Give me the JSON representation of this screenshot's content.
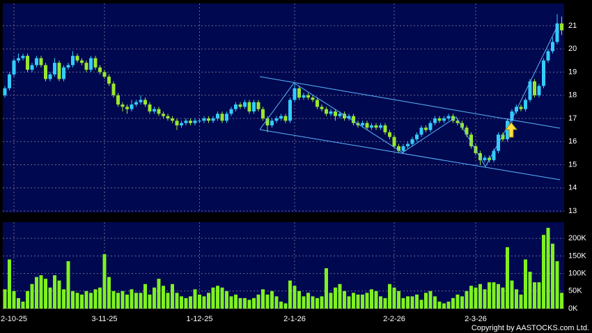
{
  "chart_data": {
    "type": "candlestick",
    "categories": [
      null,
      null,
      "2-10-25",
      null,
      null,
      null,
      null,
      null,
      null,
      null,
      null,
      null,
      null,
      null,
      null,
      null,
      null,
      null,
      null,
      null,
      null,
      null,
      "3-11-25",
      null,
      null,
      null,
      null,
      null,
      null,
      null,
      null,
      null,
      null,
      null,
      null,
      null,
      null,
      null,
      null,
      null,
      null,
      null,
      null,
      "1-12-25",
      null,
      null,
      null,
      null,
      null,
      null,
      null,
      null,
      null,
      null,
      null,
      null,
      null,
      null,
      null,
      null,
      null,
      null,
      null,
      null,
      "2-1-26",
      null,
      null,
      null,
      null,
      null,
      null,
      null,
      null,
      null,
      null,
      null,
      null,
      null,
      null,
      null,
      null,
      null,
      null,
      null,
      null,
      null,
      "2-2-26",
      null,
      null,
      null,
      null,
      null,
      null,
      null,
      null,
      null,
      null,
      null,
      null,
      null,
      null,
      null,
      null,
      null,
      "2-3-26",
      null,
      null,
      null,
      null,
      null,
      null,
      null,
      null,
      null,
      null,
      null,
      null,
      null,
      null,
      null,
      null,
      null,
      null,
      null
    ],
    "open": [
      18.0,
      18.3,
      18.9,
      19.5,
      19.6,
      19.7,
      19.1,
      19.3,
      19.6,
      19.3,
      18.7,
      18.9,
      19.4,
      18.7,
      19.2,
      19.3,
      19.7,
      19.5,
      19.4,
      19.1,
      19.6,
      19.2,
      19.0,
      18.8,
      18.5,
      18.0,
      17.6,
      17.5,
      17.4,
      17.6,
      17.7,
      17.8,
      17.6,
      17.3,
      17.4,
      17.2,
      17.1,
      17.0,
      16.9,
      16.7,
      16.8,
      16.9,
      16.8,
      16.9,
      16.9,
      17.0,
      16.9,
      17.0,
      17.2,
      16.9,
      17.2,
      17.4,
      17.6,
      17.5,
      17.7,
      17.3,
      17.7,
      17.4,
      17.0,
      16.7,
      16.9,
      17.0,
      17.1,
      16.9,
      17.8,
      18.3,
      17.9,
      18.0,
      17.9,
      17.8,
      17.5,
      17.4,
      17.2,
      17.3,
      17.1,
      17.2,
      17.0,
      17.1,
      16.8,
      16.7,
      16.8,
      16.6,
      16.7,
      16.6,
      16.7,
      16.4,
      16.2,
      15.8,
      15.6,
      15.8,
      15.9,
      16.1,
      16.3,
      16.6,
      16.5,
      16.8,
      17.0,
      16.9,
      17.0,
      17.1,
      16.9,
      16.8,
      16.6,
      16.3,
      15.8,
      15.5,
      15.2,
      15.3,
      15.2,
      15.6,
      16.3,
      16.1,
      16.9,
      17.3,
      17.5,
      17.4,
      17.8,
      18.6,
      18.0,
      18.4,
      19.5,
      19.9,
      20.3,
      21.1
    ],
    "high": [
      18.4,
      19.0,
      19.6,
      19.8,
      19.8,
      19.8,
      19.4,
      19.7,
      19.7,
      19.4,
      19.0,
      19.6,
      19.5,
      19.3,
      19.4,
      19.9,
      19.8,
      19.6,
      19.5,
      19.7,
      19.7,
      19.3,
      19.1,
      18.9,
      18.6,
      18.1,
      17.7,
      17.6,
      17.8,
      17.8,
      18.0,
      17.9,
      17.7,
      17.5,
      17.5,
      17.3,
      17.2,
      17.1,
      17.0,
      16.9,
      17.0,
      17.0,
      17.0,
      17.0,
      17.1,
      17.1,
      17.1,
      17.3,
      17.3,
      17.3,
      17.5,
      17.7,
      17.7,
      17.8,
      17.8,
      17.8,
      17.8,
      17.5,
      17.1,
      17.0,
      17.1,
      17.2,
      17.2,
      17.9,
      18.5,
      18.4,
      18.1,
      18.1,
      18.0,
      17.9,
      17.6,
      17.5,
      17.4,
      17.4,
      17.3,
      17.3,
      17.2,
      17.2,
      16.9,
      16.9,
      16.9,
      16.8,
      16.8,
      16.8,
      16.8,
      16.5,
      16.3,
      15.9,
      15.9,
      16.0,
      16.2,
      16.4,
      16.7,
      16.7,
      16.9,
      17.1,
      17.1,
      17.1,
      17.2,
      17.2,
      17.0,
      16.9,
      16.7,
      16.4,
      15.9,
      15.6,
      15.4,
      15.4,
      15.7,
      16.4,
      16.4,
      17.0,
      17.4,
      17.6,
      17.6,
      17.9,
      18.7,
      18.7,
      18.5,
      19.6,
      20.0,
      20.5,
      21.5,
      21.4
    ],
    "low": [
      17.9,
      18.2,
      18.8,
      19.4,
      19.5,
      19.0,
      19.0,
      19.2,
      19.2,
      18.6,
      18.6,
      18.8,
      18.6,
      18.6,
      19.1,
      19.2,
      19.4,
      19.3,
      19.0,
      19.0,
      19.1,
      18.9,
      18.7,
      18.4,
      17.9,
      17.5,
      17.3,
      17.2,
      17.3,
      17.5,
      17.6,
      17.5,
      17.2,
      17.2,
      17.1,
      17.0,
      16.9,
      16.8,
      16.5,
      16.6,
      16.7,
      16.7,
      16.7,
      16.8,
      16.8,
      16.8,
      16.8,
      16.9,
      16.8,
      16.8,
      17.1,
      17.3,
      17.4,
      17.4,
      17.2,
      17.2,
      17.3,
      16.9,
      16.4,
      16.6,
      16.8,
      16.9,
      16.8,
      16.8,
      17.7,
      17.8,
      17.8,
      17.8,
      17.7,
      17.4,
      17.3,
      17.1,
      17.1,
      16.9,
      17.0,
      16.9,
      16.9,
      16.7,
      16.6,
      16.6,
      16.5,
      16.5,
      16.5,
      16.5,
      16.3,
      16.1,
      15.7,
      15.5,
      15.5,
      15.7,
      15.8,
      16.0,
      16.2,
      16.4,
      16.4,
      16.7,
      16.8,
      16.8,
      16.9,
      16.8,
      16.7,
      16.5,
      16.2,
      15.7,
      15.4,
      15.0,
      15.1,
      15.1,
      15.1,
      15.5,
      16.0,
      16.0,
      16.8,
      17.2,
      17.3,
      17.3,
      17.7,
      17.9,
      17.9,
      18.3,
      19.4,
      19.8,
      20.2,
      20.6
    ],
    "close": [
      18.3,
      18.9,
      19.5,
      19.6,
      19.7,
      19.1,
      19.3,
      19.6,
      19.3,
      18.7,
      18.9,
      19.4,
      18.7,
      19.2,
      19.3,
      19.7,
      19.5,
      19.4,
      19.1,
      19.6,
      19.2,
      19.0,
      18.8,
      18.5,
      18.0,
      17.6,
      17.5,
      17.4,
      17.6,
      17.7,
      17.8,
      17.6,
      17.3,
      17.4,
      17.2,
      17.1,
      17.0,
      16.9,
      16.7,
      16.8,
      16.9,
      16.8,
      16.9,
      16.9,
      17.0,
      16.9,
      17.0,
      17.2,
      16.9,
      17.2,
      17.4,
      17.6,
      17.5,
      17.7,
      17.3,
      17.7,
      17.4,
      17.0,
      16.7,
      16.9,
      17.0,
      17.1,
      16.9,
      17.8,
      18.3,
      17.9,
      18.0,
      17.9,
      17.8,
      17.5,
      17.4,
      17.2,
      17.3,
      17.1,
      17.2,
      17.0,
      17.1,
      16.8,
      16.7,
      16.8,
      16.6,
      16.7,
      16.6,
      16.7,
      16.4,
      16.2,
      15.8,
      15.6,
      15.8,
      15.9,
      16.1,
      16.3,
      16.6,
      16.5,
      16.8,
      17.0,
      16.9,
      17.0,
      17.1,
      16.9,
      16.8,
      16.6,
      16.3,
      15.8,
      15.5,
      15.2,
      15.3,
      15.2,
      15.6,
      16.3,
      16.1,
      16.9,
      17.3,
      17.5,
      17.4,
      17.8,
      18.6,
      18.0,
      18.4,
      19.5,
      19.9,
      20.3,
      21.1,
      20.8
    ],
    "volume": [
      55000,
      140000,
      50000,
      30000,
      20000,
      50000,
      70000,
      90000,
      95000,
      85000,
      60000,
      95000,
      80000,
      55000,
      135000,
      50000,
      45000,
      40000,
      50000,
      45000,
      55000,
      60000,
      155000,
      90000,
      50000,
      45000,
      50000,
      40000,
      55000,
      45000,
      45000,
      70000,
      40000,
      60000,
      85000,
      65000,
      45000,
      70000,
      45000,
      35000,
      30000,
      35000,
      55000,
      40000,
      35000,
      45000,
      60000,
      65000,
      60000,
      50000,
      35000,
      40000,
      30000,
      30000,
      25000,
      30000,
      40000,
      55000,
      40000,
      50000,
      35000,
      20000,
      15000,
      80000,
      65000,
      50000,
      35000,
      45000,
      35000,
      30000,
      35000,
      115000,
      45000,
      60000,
      70000,
      50000,
      35000,
      45000,
      40000,
      40000,
      45000,
      55000,
      50000,
      35000,
      30000,
      70000,
      60000,
      50000,
      30000,
      35000,
      35000,
      40000,
      25000,
      45000,
      50000,
      35000,
      20000,
      15000,
      20000,
      30000,
      40000,
      35000,
      50000,
      65000,
      60000,
      70000,
      55000,
      75000,
      75000,
      70000,
      60000,
      175000,
      80000,
      55000,
      40000,
      140000,
      105000,
      75000,
      75000,
      210000,
      230000,
      185000,
      135000,
      45000
    ],
    "up_color": "#33ccff",
    "down_color": "#99e62e",
    "volume_color": "#80f020",
    "ylim": [
      12.94,
      21.96
    ],
    "yticks": [
      13,
      14,
      15,
      16,
      17,
      18,
      19,
      20,
      21
    ],
    "volume_ylim": [
      0,
      246000
    ],
    "volume_yticks": [
      {
        "value": 0,
        "label": "0K"
      },
      {
        "value": 50000,
        "label": "50K"
      },
      {
        "value": 100000,
        "label": "100K"
      },
      {
        "value": 150000,
        "label": "150K"
      },
      {
        "value": 200000,
        "label": "200K"
      }
    ],
    "grid": true,
    "copyright": "Copyright by AASTOCKS.com Ltd."
  }
}
